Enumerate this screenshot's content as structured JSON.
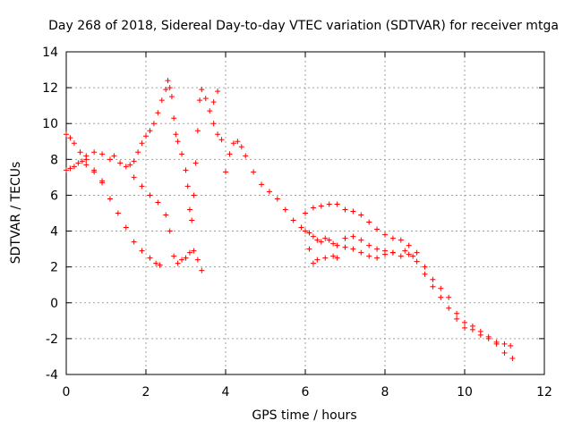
{
  "chart_data": {
    "type": "scatter",
    "title": "Day 268 of 2018, Sidereal Day-to-day VTEC variation (SDTVAR) for receiver mtga",
    "xlabel": "GPS time / hours",
    "ylabel": "SDTVAR / TECUs",
    "xlim": [
      0,
      12
    ],
    "ylim": [
      -4,
      14
    ],
    "xticks": [
      0,
      2,
      4,
      6,
      8,
      10,
      12
    ],
    "yticks": [
      -4,
      -2,
      0,
      2,
      4,
      6,
      8,
      10,
      12,
      14
    ],
    "grid": true,
    "marker": "plus",
    "color": "#ff0000",
    "series": [
      {
        "name": "sdtvar",
        "points": [
          [
            0.0,
            9.4
          ],
          [
            0.1,
            9.2
          ],
          [
            0.2,
            8.9
          ],
          [
            0.35,
            8.4
          ],
          [
            0.5,
            8.0
          ],
          [
            0.7,
            7.4
          ],
          [
            0.9,
            6.8
          ],
          [
            1.1,
            5.8
          ],
          [
            1.3,
            5.0
          ],
          [
            1.5,
            4.2
          ],
          [
            1.7,
            3.4
          ],
          [
            1.9,
            2.9
          ],
          [
            2.1,
            2.5
          ],
          [
            2.25,
            2.2
          ],
          [
            2.35,
            2.1
          ],
          [
            0.0,
            7.4
          ],
          [
            0.2,
            7.6
          ],
          [
            0.4,
            7.9
          ],
          [
            0.5,
            8.2
          ],
          [
            0.7,
            8.4
          ],
          [
            0.9,
            8.3
          ],
          [
            1.1,
            8.0
          ],
          [
            1.2,
            8.2
          ],
          [
            1.35,
            7.8
          ],
          [
            1.5,
            7.6
          ],
          [
            1.7,
            7.0
          ],
          [
            1.9,
            6.5
          ],
          [
            2.1,
            6.0
          ],
          [
            2.3,
            5.6
          ],
          [
            2.5,
            4.9
          ],
          [
            2.6,
            4.0
          ],
          [
            2.7,
            2.6
          ],
          [
            2.8,
            2.2
          ],
          [
            2.9,
            2.4
          ],
          [
            3.0,
            2.5
          ],
          [
            3.1,
            2.8
          ],
          [
            3.2,
            2.9
          ],
          [
            3.3,
            2.4
          ],
          [
            3.4,
            1.8
          ],
          [
            0.1,
            7.5
          ],
          [
            0.3,
            7.8
          ],
          [
            0.5,
            7.7
          ],
          [
            0.7,
            7.3
          ],
          [
            0.9,
            6.7
          ],
          [
            1.6,
            7.7
          ],
          [
            1.7,
            7.9
          ],
          [
            1.8,
            8.4
          ],
          [
            1.9,
            8.9
          ],
          [
            2.0,
            9.3
          ],
          [
            2.1,
            9.6
          ],
          [
            2.2,
            10.0
          ],
          [
            2.3,
            10.6
          ],
          [
            2.4,
            11.3
          ],
          [
            2.5,
            11.9
          ],
          [
            2.55,
            12.4
          ],
          [
            2.6,
            12.0
          ],
          [
            2.65,
            11.5
          ],
          [
            2.7,
            10.3
          ],
          [
            2.75,
            9.4
          ],
          [
            2.8,
            9.0
          ],
          [
            2.9,
            8.3
          ],
          [
            3.0,
            7.4
          ],
          [
            3.05,
            6.5
          ],
          [
            3.1,
            5.2
          ],
          [
            3.15,
            4.6
          ],
          [
            3.2,
            6.0
          ],
          [
            3.25,
            7.8
          ],
          [
            3.3,
            9.6
          ],
          [
            3.35,
            11.3
          ],
          [
            3.4,
            11.9
          ],
          [
            3.5,
            11.4
          ],
          [
            3.6,
            10.7
          ],
          [
            3.7,
            11.2
          ],
          [
            3.8,
            11.8
          ],
          [
            3.7,
            10.0
          ],
          [
            3.8,
            9.4
          ],
          [
            3.9,
            9.1
          ],
          [
            4.0,
            7.3
          ],
          [
            4.1,
            8.3
          ],
          [
            4.2,
            8.9
          ],
          [
            4.3,
            9.0
          ],
          [
            4.4,
            8.7
          ],
          [
            4.5,
            8.2
          ],
          [
            4.7,
            7.3
          ],
          [
            4.9,
            6.6
          ],
          [
            5.1,
            6.2
          ],
          [
            5.3,
            5.8
          ],
          [
            5.5,
            5.2
          ],
          [
            5.7,
            4.6
          ],
          [
            5.9,
            4.2
          ],
          [
            6.0,
            4.0
          ],
          [
            6.1,
            3.9
          ],
          [
            6.2,
            3.7
          ],
          [
            6.3,
            3.5
          ],
          [
            6.4,
            3.4
          ],
          [
            6.5,
            3.6
          ],
          [
            6.6,
            3.5
          ],
          [
            6.7,
            3.3
          ],
          [
            6.8,
            3.2
          ],
          [
            7.0,
            3.1
          ],
          [
            7.2,
            3.0
          ],
          [
            7.4,
            2.8
          ],
          [
            7.6,
            2.6
          ],
          [
            7.8,
            2.5
          ],
          [
            8.0,
            2.7
          ],
          [
            8.2,
            2.8
          ],
          [
            8.4,
            2.6
          ],
          [
            8.6,
            2.7
          ],
          [
            8.8,
            2.3
          ],
          [
            9.0,
            1.6
          ],
          [
            9.2,
            0.9
          ],
          [
            9.4,
            0.3
          ],
          [
            9.6,
            -0.3
          ],
          [
            9.8,
            -0.9
          ],
          [
            10.0,
            -1.4
          ],
          [
            10.2,
            -1.5
          ],
          [
            10.4,
            -1.8
          ],
          [
            10.6,
            -2.0
          ],
          [
            10.8,
            -2.2
          ],
          [
            11.0,
            -2.3
          ],
          [
            11.15,
            -2.4
          ],
          [
            6.0,
            5.0
          ],
          [
            6.2,
            5.3
          ],
          [
            6.4,
            5.4
          ],
          [
            6.6,
            5.5
          ],
          [
            6.8,
            5.5
          ],
          [
            7.0,
            5.2
          ],
          [
            7.2,
            5.1
          ],
          [
            7.4,
            4.9
          ],
          [
            7.6,
            4.5
          ],
          [
            7.8,
            4.1
          ],
          [
            8.0,
            3.8
          ],
          [
            8.2,
            3.6
          ],
          [
            8.4,
            3.5
          ],
          [
            8.6,
            3.2
          ],
          [
            8.8,
            2.8
          ],
          [
            9.0,
            2.0
          ],
          [
            9.2,
            1.3
          ],
          [
            9.4,
            0.8
          ],
          [
            9.6,
            0.3
          ],
          [
            9.8,
            -0.6
          ],
          [
            10.0,
            -1.1
          ],
          [
            10.2,
            -1.3
          ],
          [
            10.4,
            -1.6
          ],
          [
            10.6,
            -1.9
          ],
          [
            10.8,
            -2.3
          ],
          [
            11.0,
            -2.8
          ],
          [
            11.2,
            -3.1
          ],
          [
            6.1,
            3.0
          ],
          [
            6.2,
            2.2
          ],
          [
            6.3,
            2.4
          ],
          [
            6.5,
            2.5
          ],
          [
            6.7,
            2.6
          ],
          [
            6.8,
            2.5
          ],
          [
            7.0,
            3.6
          ],
          [
            7.2,
            3.7
          ],
          [
            7.4,
            3.5
          ],
          [
            7.6,
            3.2
          ],
          [
            7.8,
            3.0
          ],
          [
            8.0,
            2.9
          ],
          [
            8.2,
            2.8
          ],
          [
            8.5,
            2.9
          ],
          [
            8.7,
            2.6
          ]
        ]
      }
    ]
  }
}
